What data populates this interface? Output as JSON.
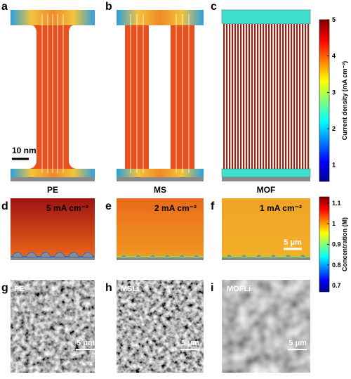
{
  "panels": [
    {
      "letter": "a",
      "label": "PE"
    },
    {
      "letter": "b",
      "label": "MS"
    },
    {
      "letter": "c",
      "label": "MOF"
    }
  ],
  "scale_bar_a": "10 nm",
  "concentration_panels": [
    {
      "letter": "d",
      "current": "5 mA cm⁻²"
    },
    {
      "letter": "e",
      "current": "2 mA cm⁻²"
    },
    {
      "letter": "f",
      "current": "1 mA cm⁻²"
    }
  ],
  "scale_bar_f": "5 μm",
  "sem_panels": [
    {
      "letter": "g",
      "label": "PE",
      "scale_bar": "5 μm"
    },
    {
      "letter": "h",
      "label": "MSLi",
      "scale_bar": "5 μm"
    },
    {
      "letter": "i",
      "label": "MOFLi",
      "scale_bar": "5 μm"
    }
  ],
  "colorbars": [
    {
      "label": "Current density (mA cm⁻²)",
      "lim": [
        0.55,
        5
      ],
      "ticks": [
        1,
        2,
        3,
        4,
        5
      ]
    },
    {
      "label": "Concentration (M)",
      "lim": [
        0.67,
        1.13
      ],
      "ticks": [
        0.7,
        0.8,
        0.9,
        1,
        1.1
      ]
    }
  ]
}
